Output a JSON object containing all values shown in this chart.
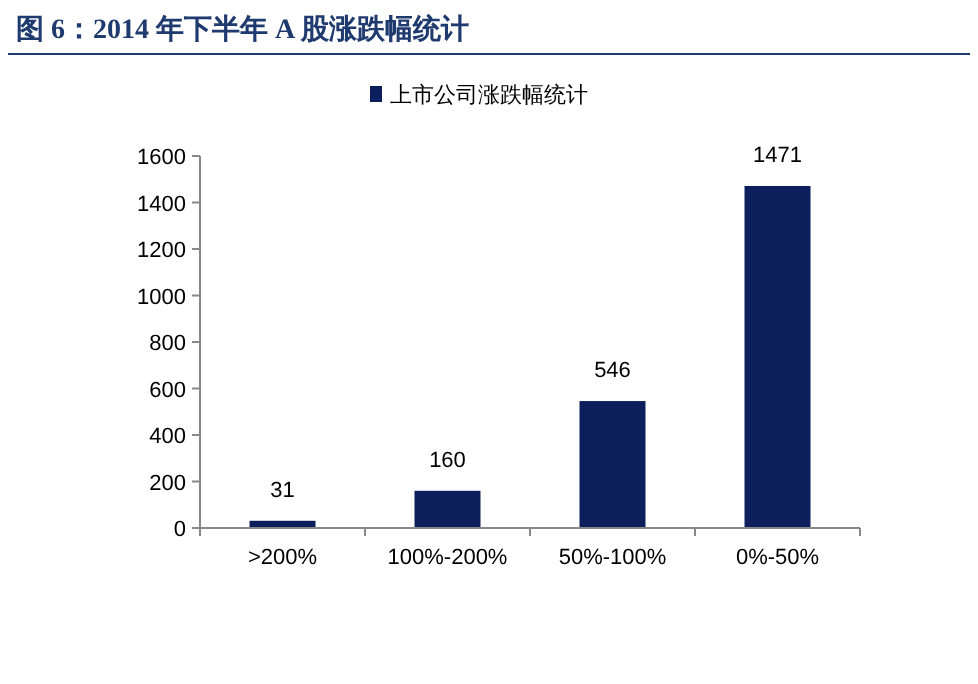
{
  "chart_data": {
    "type": "bar",
    "title": "图 6：2014 年下半年 A 股涨跌幅统计",
    "categories": [
      ">200%",
      "100%-200%",
      "50%-100%",
      "0%-50%"
    ],
    "series": [
      {
        "name": "上市公司涨跌幅统计",
        "color": "#0c1e5b",
        "values": [
          31,
          160,
          546,
          1471
        ]
      }
    ],
    "ylim": [
      0,
      1600
    ],
    "yticks": [
      0,
      200,
      400,
      600,
      800,
      1000,
      1200,
      1400,
      1600
    ],
    "data_labels": true,
    "legend": "top",
    "grid": false
  }
}
